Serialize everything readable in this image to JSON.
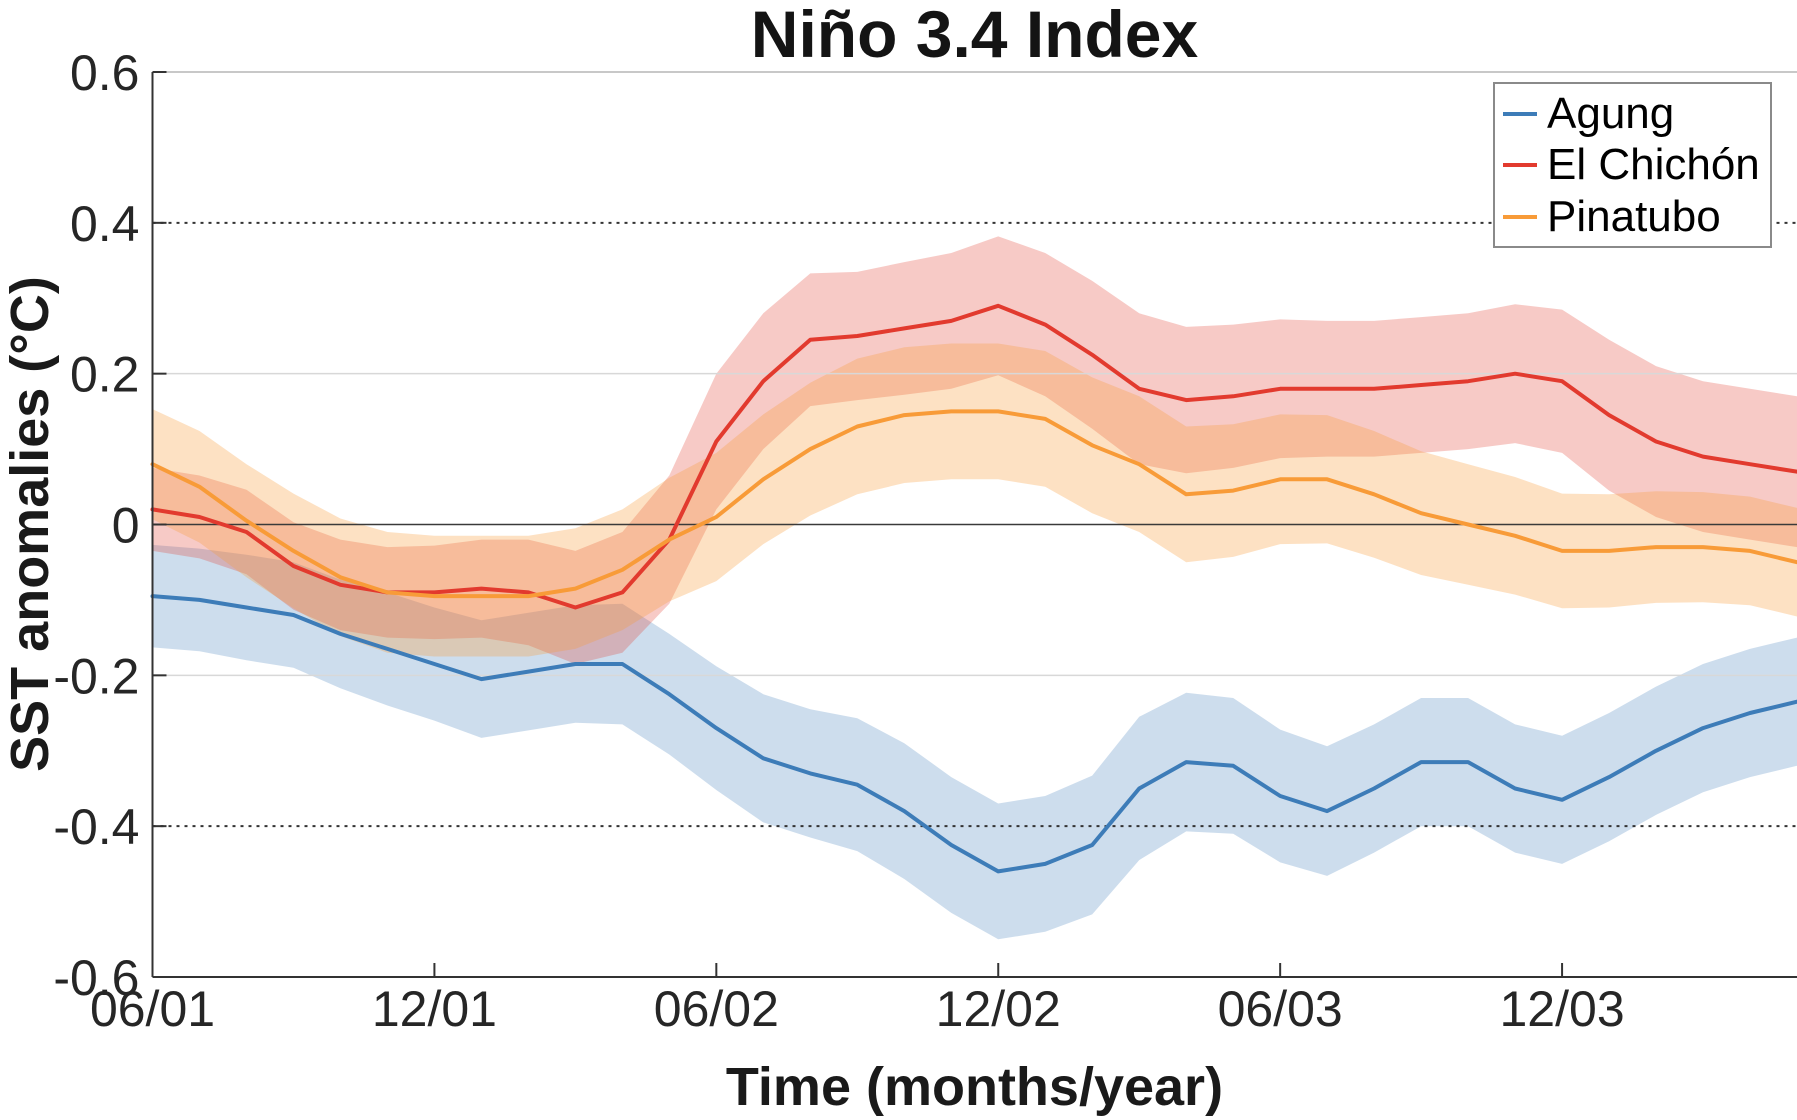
{
  "chart_data": {
    "type": "line",
    "title": "Niño 3.4 Index",
    "xlabel": "Time (months/year)",
    "ylabel": "SST anomalies (°C)",
    "legend_position": "top-right",
    "grid": {
      "dotted_lines_at": [
        0.4,
        -0.4
      ],
      "light_lines_at": [
        0.2,
        -0.2
      ],
      "zero_line_at": 0
    },
    "xlim": [
      0,
      35
    ],
    "ylim": [
      -0.6,
      0.6
    ],
    "x_tick_labels": [
      "06/01",
      "12/01",
      "06/02",
      "12/02",
      "06/03",
      "12/03"
    ],
    "x_tick_positions": [
      0,
      6,
      12,
      18,
      24,
      30
    ],
    "y_tick_values": [
      0.6,
      0.4,
      0.2,
      0,
      -0.2,
      -0.4,
      -0.6
    ],
    "y_tick_labels": [
      "0.6",
      "0.4",
      "0.2",
      "0",
      "-0.2",
      "-0.4",
      "-0.6"
    ],
    "x": [
      "06/01",
      "07/01",
      "08/01",
      "09/01",
      "10/01",
      "11/01",
      "12/01",
      "01/02",
      "02/02",
      "03/02",
      "04/02",
      "05/02",
      "06/02",
      "07/02",
      "08/02",
      "09/02",
      "10/02",
      "11/02",
      "12/02",
      "01/03",
      "02/03",
      "03/03",
      "04/03",
      "05/03",
      "06/03",
      "07/03",
      "08/03",
      "09/03",
      "10/03",
      "11/03",
      "12/03",
      "01/04",
      "02/04",
      "03/04",
      "04/04",
      "05/04"
    ],
    "series": [
      {
        "name": "Agung",
        "color": "#3D7CB8",
        "band_opacity": 0.26,
        "values": [
          -0.095,
          -0.1,
          -0.11,
          -0.12,
          -0.145,
          -0.165,
          -0.185,
          -0.205,
          -0.195,
          -0.185,
          -0.185,
          -0.225,
          -0.27,
          -0.31,
          -0.33,
          -0.345,
          -0.38,
          -0.425,
          -0.46,
          -0.45,
          -0.425,
          -0.35,
          -0.315,
          -0.32,
          -0.36,
          -0.38,
          -0.35,
          -0.315,
          -0.315,
          -0.35,
          -0.365,
          -0.335,
          -0.3,
          -0.27,
          -0.25,
          -0.235
        ],
        "band_halfwidth": [
          0.068,
          0.068,
          0.07,
          0.07,
          0.072,
          0.075,
          0.075,
          0.078,
          0.078,
          0.078,
          0.08,
          0.08,
          0.082,
          0.085,
          0.085,
          0.088,
          0.09,
          0.09,
          0.09,
          0.09,
          0.092,
          0.095,
          0.092,
          0.09,
          0.088,
          0.086,
          0.085,
          0.085,
          0.085,
          0.085,
          0.085,
          0.085,
          0.085,
          0.085,
          0.085,
          0.085
        ]
      },
      {
        "name": "El Chichón",
        "color": "#E23A2E",
        "band_opacity": 0.27,
        "values": [
          0.02,
          0.01,
          -0.01,
          -0.055,
          -0.08,
          -0.09,
          -0.09,
          -0.085,
          -0.09,
          -0.11,
          -0.09,
          -0.02,
          0.11,
          0.19,
          0.245,
          0.25,
          0.26,
          0.27,
          0.29,
          0.265,
          0.225,
          0.18,
          0.165,
          0.17,
          0.18,
          0.18,
          0.18,
          0.185,
          0.19,
          0.2,
          0.19,
          0.145,
          0.11,
          0.09,
          0.08,
          0.07
        ],
        "band_halfwidth": [
          0.055,
          0.055,
          0.056,
          0.058,
          0.06,
          0.06,
          0.062,
          0.065,
          0.07,
          0.075,
          0.08,
          0.085,
          0.09,
          0.09,
          0.088,
          0.085,
          0.088,
          0.09,
          0.092,
          0.095,
          0.098,
          0.1,
          0.097,
          0.095,
          0.092,
          0.09,
          0.09,
          0.09,
          0.09,
          0.092,
          0.095,
          0.1,
          0.1,
          0.1,
          0.1,
          0.1
        ]
      },
      {
        "name": "Pinatubo",
        "color": "#F89B38",
        "band_opacity": 0.3,
        "values": [
          0.08,
          0.05,
          0.005,
          -0.035,
          -0.07,
          -0.09,
          -0.095,
          -0.095,
          -0.095,
          -0.085,
          -0.06,
          -0.02,
          0.01,
          0.06,
          0.1,
          0.13,
          0.145,
          0.15,
          0.15,
          0.14,
          0.105,
          0.08,
          0.04,
          0.045,
          0.06,
          0.06,
          0.04,
          0.015,
          0.0,
          -0.015,
          -0.035,
          -0.035,
          -0.03,
          -0.03,
          -0.035,
          -0.05
        ],
        "band_halfwidth": [
          0.073,
          0.074,
          0.075,
          0.076,
          0.078,
          0.08,
          0.08,
          0.08,
          0.08,
          0.08,
          0.08,
          0.082,
          0.085,
          0.086,
          0.088,
          0.09,
          0.09,
          0.09,
          0.09,
          0.09,
          0.09,
          0.09,
          0.09,
          0.088,
          0.086,
          0.085,
          0.084,
          0.082,
          0.08,
          0.078,
          0.076,
          0.075,
          0.074,
          0.073,
          0.072,
          0.072
        ]
      }
    ],
    "colors": {
      "background": "#ffffff",
      "axis": "#333333",
      "top_spine": "#b5b5b5",
      "tick_label": "#262626",
      "grid_light": "#d8d8d8",
      "grid_dotted": "#333333",
      "zero_line": "#3a3a3a",
      "legend_border": "#8a8a8a"
    }
  }
}
